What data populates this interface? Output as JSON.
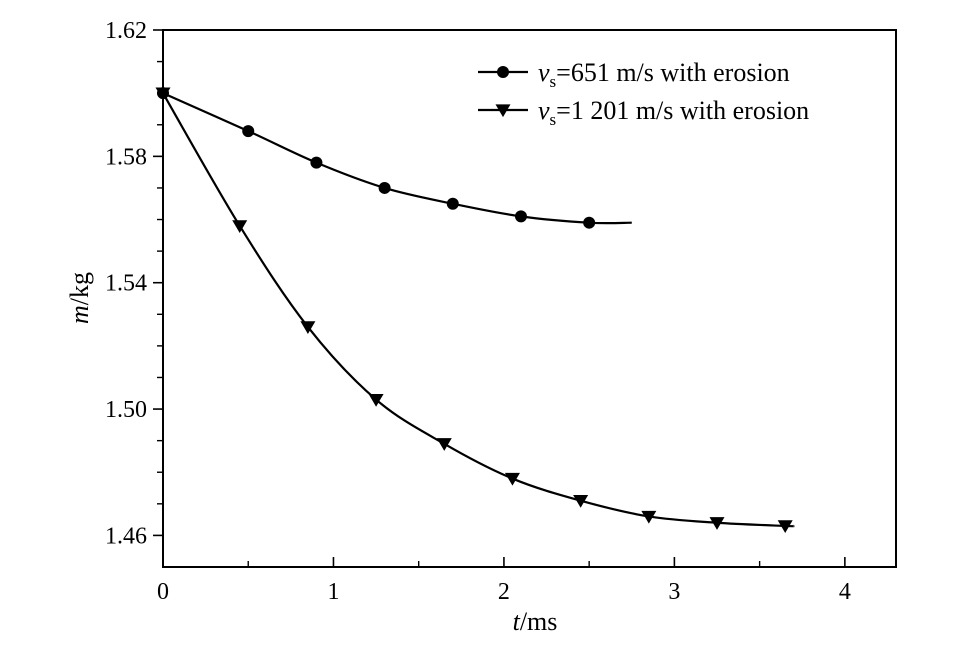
{
  "chart_data": {
    "type": "line",
    "xlabel": {
      "italic": "t",
      "rest": "/ms"
    },
    "ylabel": {
      "italic": "m",
      "rest": "/kg"
    },
    "xlim": [
      0,
      4.3
    ],
    "ylim": [
      1.45,
      1.62
    ],
    "xticks": [
      0,
      1,
      2,
      3,
      4
    ],
    "xtick_labels": [
      "0",
      "1",
      "2",
      "3",
      "4"
    ],
    "yticks": [
      1.46,
      1.5,
      1.54,
      1.58,
      1.62
    ],
    "ytick_labels": [
      "1.46",
      "1.50",
      "1.54",
      "1.58",
      "1.62"
    ],
    "grid": false,
    "legend_position": "top-right",
    "series": [
      {
        "legend": {
          "italic": "v",
          "sub": "s",
          "rest": "=651 m/s with erosion"
        },
        "marker": "circle",
        "color": "#000000",
        "x": [
          0,
          0.5,
          0.9,
          1.3,
          1.7,
          2.1,
          2.5
        ],
        "y": [
          1.6,
          1.588,
          1.578,
          1.57,
          1.565,
          1.561,
          1.559
        ],
        "curve_end": [
          2.75,
          1.559
        ]
      },
      {
        "legend": {
          "italic": "v",
          "sub": "s",
          "rest": "=1 201 m/s with erosion"
        },
        "marker": "triangle-down",
        "color": "#000000",
        "x": [
          0,
          0.45,
          0.85,
          1.25,
          1.65,
          2.05,
          2.45,
          2.85,
          3.25,
          3.65
        ],
        "y": [
          1.6,
          1.558,
          1.526,
          1.503,
          1.489,
          1.478,
          1.471,
          1.466,
          1.464,
          1.463
        ],
        "curve_end": [
          3.7,
          1.463
        ]
      }
    ]
  }
}
